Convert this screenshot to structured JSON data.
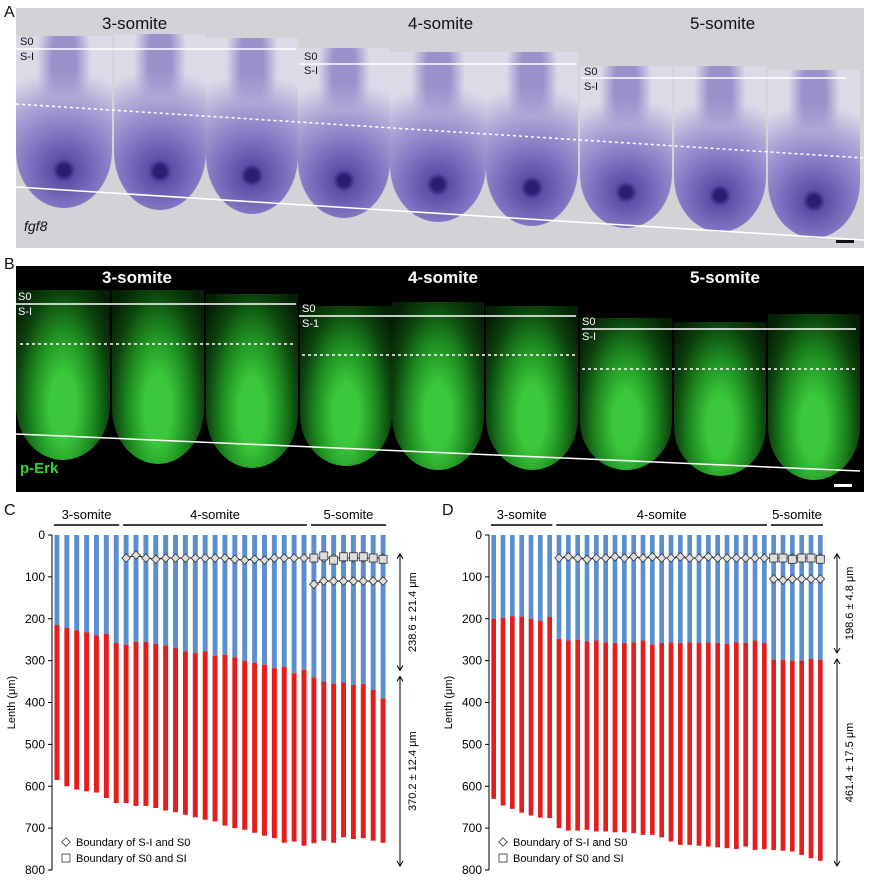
{
  "panelA": {
    "letter": "A",
    "stages": [
      "3-somite",
      "4-somite",
      "5-somite"
    ],
    "boundary_labels": [
      "S0",
      "S-I"
    ],
    "gene_label": "fgf8"
  },
  "panelB": {
    "letter": "B",
    "stages": [
      "3-somite",
      "4-somite",
      "5-somite"
    ],
    "boundary_labels_3": [
      "S0",
      "S-I"
    ],
    "boundary_labels_4": [
      "S0",
      "S-1"
    ],
    "boundary_labels_5": [
      "S0",
      "S-I"
    ],
    "stain_label": "p-Erk"
  },
  "colors": {
    "blue": "#5b8fd0",
    "red": "#e41e1e",
    "panelA_bg": "#d4d2d7",
    "panelB_text": "#2fd82f"
  },
  "chart_data": [
    {
      "panel": "C",
      "type": "bar",
      "stacked": true,
      "ylabel": "Lenth (μm)",
      "ylim": [
        0,
        800
      ],
      "y_inverted": true,
      "yticks": [
        "0",
        "100",
        "200",
        "300",
        "400",
        "500",
        "600",
        "700",
        "800"
      ],
      "stage_brackets": [
        "3-somite",
        "4-somite",
        "5-somite"
      ],
      "stage_bar_counts": [
        7,
        19,
        8
      ],
      "series": [
        {
          "color": "#5b8fd0",
          "values": [
            215,
            222,
            228,
            232,
            240,
            236,
            258,
            262,
            255,
            255,
            260,
            264,
            270,
            278,
            282,
            278,
            288,
            286,
            292,
            300,
            305,
            310,
            318,
            315,
            330,
            322,
            340,
            350,
            355,
            352,
            358,
            356,
            370,
            390
          ]
        },
        {
          "color": "#e41e1e",
          "values": [
            370,
            378,
            380,
            380,
            375,
            392,
            382,
            378,
            392,
            392,
            392,
            394,
            392,
            390,
            392,
            402,
            396,
            408,
            408,
            404,
            406,
            408,
            406,
            420,
            402,
            420,
            396,
            380,
            380,
            370,
            368,
            368,
            360,
            345
          ]
        }
      ],
      "boundary_SI_S0": [
        0,
        0,
        0,
        0,
        0,
        0,
        0,
        55,
        48,
        55,
        58,
        55,
        55,
        55,
        55,
        55,
        55,
        55,
        58,
        60,
        58,
        60,
        55,
        55,
        55,
        55,
        55,
        55,
        55,
        55,
        55,
        55,
        55,
        55
      ],
      "boundary_S0_SI": [
        0,
        0,
        0,
        0,
        0,
        0,
        0,
        0,
        0,
        0,
        0,
        0,
        0,
        0,
        0,
        0,
        0,
        0,
        0,
        0,
        0,
        0,
        0,
        0,
        0,
        0,
        118,
        110,
        110,
        110,
        110,
        110,
        110,
        110
      ],
      "marker_squares": [
        0,
        0,
        0,
        0,
        0,
        0,
        0,
        0,
        0,
        0,
        0,
        0,
        0,
        0,
        0,
        0,
        0,
        0,
        0,
        0,
        0,
        0,
        0,
        0,
        0,
        0,
        55,
        50,
        60,
        52,
        52,
        52,
        55,
        58
      ],
      "annotations": [
        "238.6 ± 21.4 μm",
        "370.2 ± 12.4 μm"
      ],
      "legend": [
        "Boundary of S-I and S0",
        "Boundary of S0 and SI"
      ]
    },
    {
      "panel": "D",
      "type": "bar",
      "stacked": true,
      "ylabel": "Lenth (μm)",
      "ylim": [
        0,
        800
      ],
      "y_inverted": true,
      "yticks": [
        "0",
        "100",
        "200",
        "300",
        "400",
        "500",
        "600",
        "700",
        "800"
      ],
      "stage_brackets": [
        "3-somite",
        "4-somite",
        "5-somite"
      ],
      "stage_bar_counts": [
        7,
        23,
        6
      ],
      "series": [
        {
          "color": "#5b8fd0",
          "values": [
            200,
            198,
            194,
            195,
            200,
            205,
            196,
            248,
            252,
            250,
            254,
            252,
            256,
            258,
            258,
            256,
            252,
            262,
            258,
            256,
            258,
            256,
            258,
            256,
            258,
            260,
            256,
            258,
            252,
            258,
            298,
            298,
            300,
            300,
            296,
            298
          ]
        },
        {
          "color": "#e41e1e",
          "values": [
            430,
            448,
            460,
            468,
            470,
            470,
            480,
            452,
            454,
            456,
            450,
            456,
            452,
            452,
            452,
            456,
            464,
            454,
            464,
            476,
            482,
            484,
            484,
            488,
            488,
            488,
            494,
            486,
            500,
            492,
            454,
            456,
            456,
            464,
            476,
            480
          ]
        }
      ],
      "boundary_SI_S0": [
        0,
        0,
        0,
        0,
        0,
        0,
        0,
        55,
        52,
        55,
        58,
        55,
        55,
        52,
        55,
        52,
        55,
        52,
        55,
        55,
        52,
        55,
        55,
        52,
        55,
        55,
        55,
        55,
        55,
        55,
        55,
        55,
        55,
        55,
        55,
        55
      ],
      "boundary_S0_SI": [
        0,
        0,
        0,
        0,
        0,
        0,
        0,
        0,
        0,
        0,
        0,
        0,
        0,
        0,
        0,
        0,
        0,
        0,
        0,
        0,
        0,
        0,
        0,
        0,
        0,
        0,
        0,
        0,
        0,
        0,
        105,
        108,
        105,
        105,
        105,
        105
      ],
      "marker_squares": [
        0,
        0,
        0,
        0,
        0,
        0,
        0,
        0,
        0,
        0,
        0,
        0,
        0,
        0,
        0,
        0,
        0,
        0,
        0,
        0,
        0,
        0,
        0,
        0,
        0,
        0,
        0,
        0,
        0,
        0,
        55,
        55,
        58,
        55,
        55,
        58
      ],
      "annotations": [
        "198.6 ± 4.8 μm",
        "461.4 ± 17.5 μm"
      ],
      "legend": [
        "Boundary of S-I and S0",
        "Boundary of S0 and SI"
      ]
    }
  ],
  "panel_letters": [
    "C",
    "D"
  ]
}
